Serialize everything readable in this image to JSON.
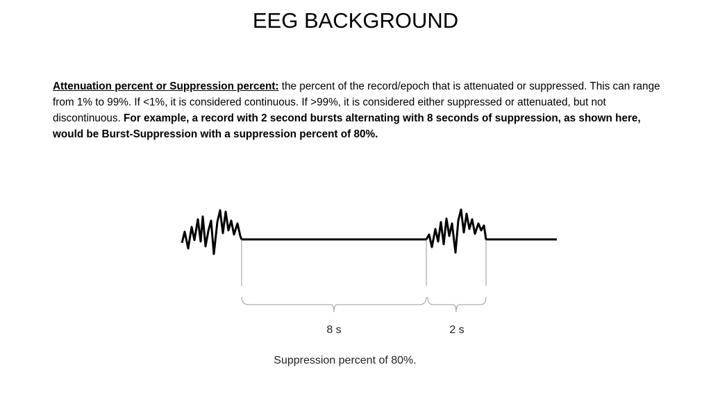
{
  "header": {
    "title": "EEG BACKGROUND"
  },
  "paragraph": {
    "term": "Attenuation percent or Suppression percent:",
    "definition": " the percent of the record/epoch that is attenuated or suppressed. This can range from 1% to 99%. If <1%, it is considered continuous. If >99%, it is considered either suppressed or attenuated, but not discontinuous. ",
    "example": "For example, a record with 2 second bursts alternating with 8 seconds of suppression, as shown here, would be Burst-Suppression with a suppression percent of 80%."
  },
  "figure": {
    "suppression_label": "8 s",
    "burst_label": "2 s",
    "caption": "Suppression percent of 80%."
  }
}
